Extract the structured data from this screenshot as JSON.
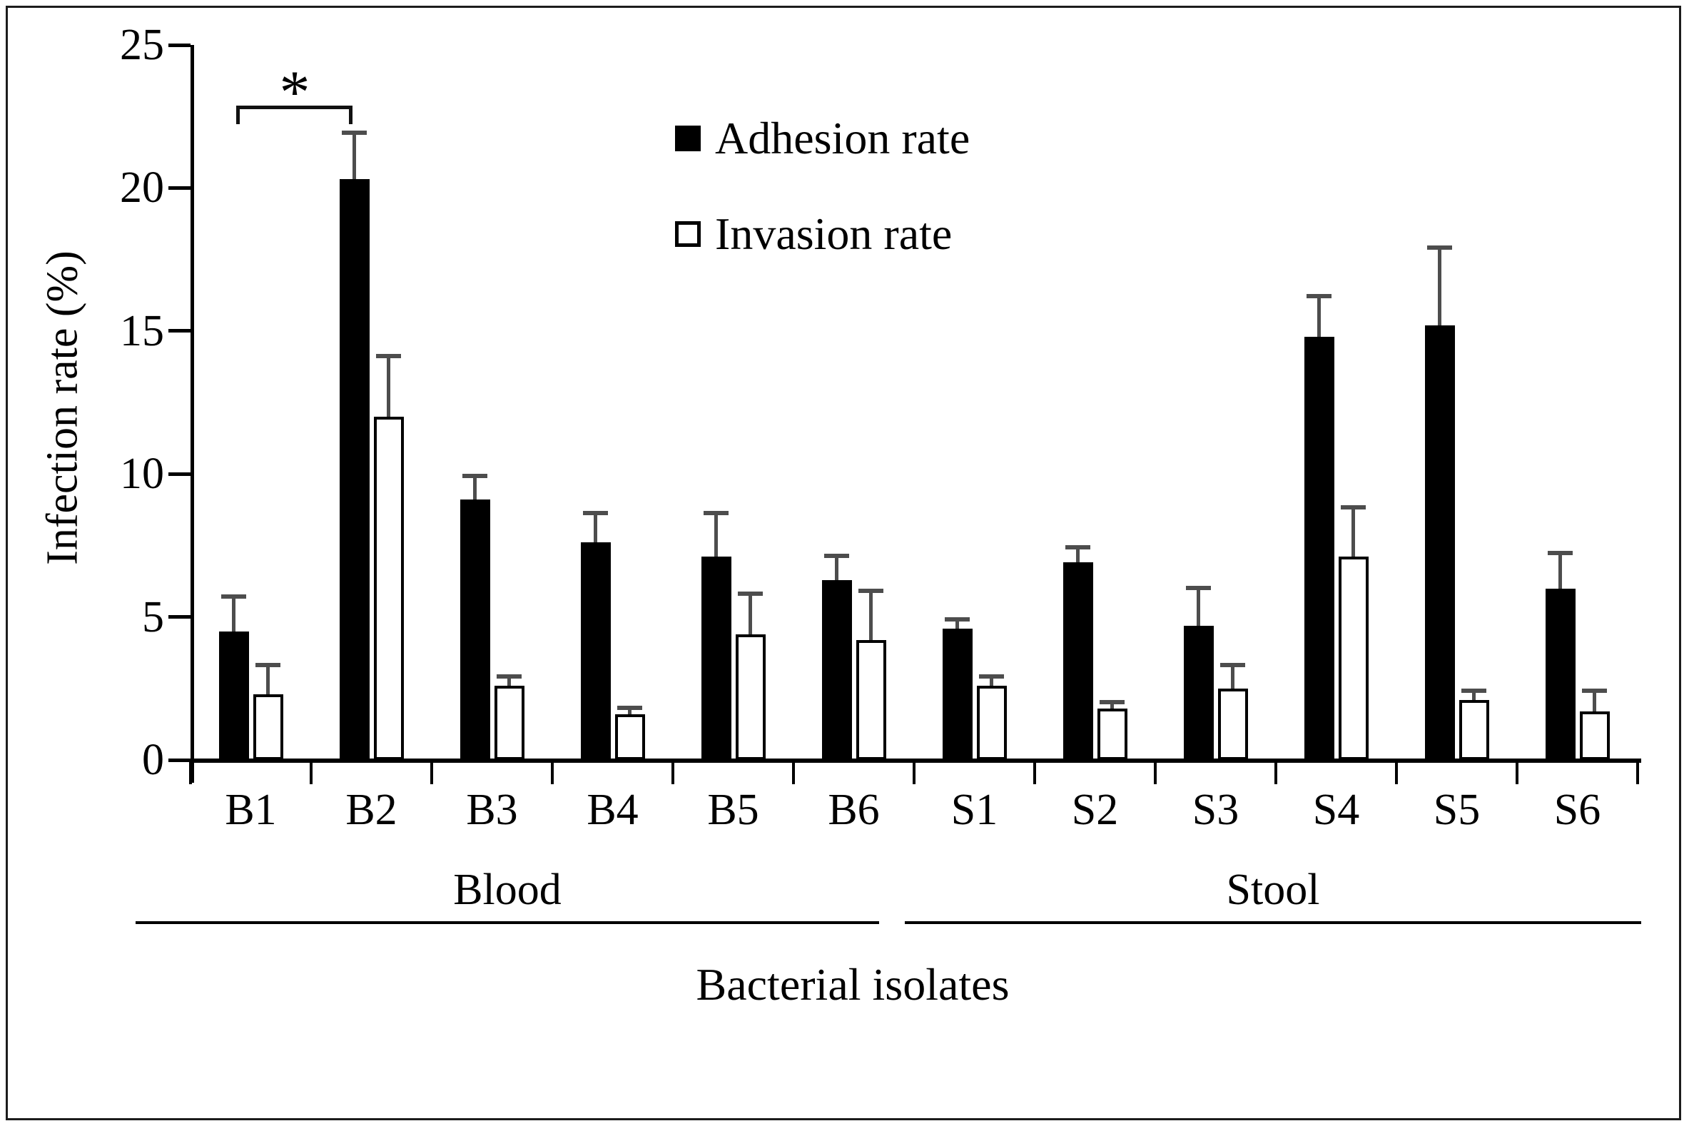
{
  "chart_data": {
    "type": "bar",
    "title": "",
    "ylabel": "Infection rate (%)",
    "xlabel": "Bacterial isolates",
    "ylim": [
      0,
      25
    ],
    "y_ticks": [
      0,
      5,
      10,
      15,
      20,
      25
    ],
    "grid": false,
    "legend_position": "upper-center-inside",
    "categories": [
      "B1",
      "B2",
      "B3",
      "B4",
      "B5",
      "B6",
      "S1",
      "S2",
      "S3",
      "S4",
      "S5",
      "S6"
    ],
    "groups": [
      {
        "label": "Blood",
        "from": "B1",
        "to": "B6"
      },
      {
        "label": "Stool",
        "from": "S1",
        "to": "S6"
      }
    ],
    "legend": [
      {
        "name": "Adhesion rate",
        "fill": "#000000"
      },
      {
        "name": "Invasion rate",
        "fill": "#ffffff"
      }
    ],
    "series": [
      {
        "name": "Adhesion rate",
        "fill": "#000000",
        "values": [
          4.5,
          20.3,
          9.1,
          7.6,
          7.1,
          6.3,
          4.6,
          6.9,
          4.7,
          14.8,
          15.2,
          6.0
        ],
        "errors": [
          1.3,
          1.7,
          0.9,
          1.1,
          1.6,
          0.9,
          0.4,
          0.6,
          1.4,
          1.5,
          2.8,
          1.3
        ]
      },
      {
        "name": "Invasion rate",
        "fill": "#ffffff",
        "values": [
          2.3,
          12.0,
          2.6,
          1.6,
          4.4,
          4.2,
          2.6,
          1.8,
          2.5,
          7.1,
          2.1,
          1.7
        ],
        "errors": [
          1.1,
          2.2,
          0.4,
          0.3,
          1.5,
          1.8,
          0.4,
          0.3,
          0.9,
          1.8,
          0.4,
          0.8
        ]
      }
    ],
    "significance": {
      "label": "*",
      "from": "B1",
      "to": "B2"
    },
    "colors": {
      "bar_fill": "#000000",
      "bar_open": "#ffffff",
      "error_bar": "#4d4d4d",
      "frame": "#1c1c1c"
    }
  }
}
